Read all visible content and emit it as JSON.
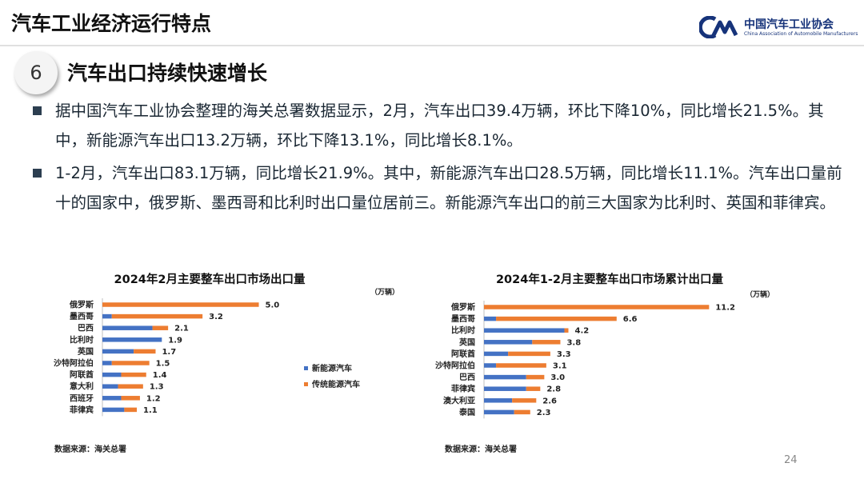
{
  "slide": {
    "header_title": "汽车工业经济运行特点",
    "logo_cn": "中国汽车工业协会",
    "logo_en": "China Association of Automobile Manufacturers",
    "section_number": "6",
    "section_title": "汽车出口持续快速增长",
    "bullets": [
      "据中国汽车工业协会整理的海关总署数据显示，2月，汽车出口39.4万辆，环比下降10%，同比增长21.5%。其中，新能源汽车出口13.2万辆，环比下降13.1%，同比增长8.1%。",
      "1-2月，汽车出口83.1万辆，同比增长21.9%。其中，新能源汽车出口28.5万辆，同比增长11.1%。汽车出口量前十的国家中，俄罗斯、墨西哥和比利时出口量位居前三。新能源汽车出口的前三大国家为比利时、英国和菲律宾。"
    ],
    "page_number": "24",
    "colors": {
      "nev": "#4472c4",
      "ice": "#ed7d31",
      "bullet": "#2c3e50"
    }
  },
  "chart_data": [
    {
      "type": "bar",
      "orientation": "horizontal",
      "stacked": true,
      "title": "2024年2月主要整车出口市场出口量",
      "unit": "（万辆）",
      "source": "数据来源：海关总署",
      "categories": [
        "俄罗斯",
        "墨西哥",
        "巴西",
        "比利时",
        "英国",
        "沙特阿拉伯",
        "阿联酋",
        "意大利",
        "西班牙",
        "菲律宾"
      ],
      "totals": [
        5.0,
        3.2,
        2.1,
        1.9,
        1.7,
        1.5,
        1.4,
        1.3,
        1.2,
        1.1
      ],
      "total_labels": [
        "5.0",
        "3.2",
        "2.1",
        "1.9",
        "1.7",
        "1.5",
        "1.4",
        "1.3",
        "1.2",
        "1.1"
      ],
      "series": [
        {
          "name": "新能源汽车",
          "color": "#4472c4",
          "values": [
            0.0,
            0.3,
            1.6,
            1.9,
            1.0,
            0.3,
            0.6,
            0.5,
            0.6,
            0.7
          ]
        },
        {
          "name": "传统能源汽车",
          "color": "#ed7d31",
          "values": [
            5.0,
            2.9,
            0.5,
            0.0,
            0.7,
            1.2,
            0.8,
            0.8,
            0.6,
            0.4
          ]
        }
      ],
      "xlim": [
        0,
        5.6
      ],
      "legend": "right"
    },
    {
      "type": "bar",
      "orientation": "horizontal",
      "stacked": true,
      "title": "2024年1-2月主要整车出口市场累计出口量",
      "unit": "（万辆）",
      "source": "数据来源：海关总署",
      "categories": [
        "俄罗斯",
        "墨西哥",
        "比利时",
        "英国",
        "阿联酋",
        "沙特阿拉伯",
        "巴西",
        "菲律宾",
        "澳大利亚",
        "泰国"
      ],
      "totals": [
        11.2,
        6.6,
        4.2,
        3.8,
        3.3,
        3.1,
        3.0,
        2.8,
        2.6,
        2.3
      ],
      "total_labels": [
        "11.2",
        "6.6",
        "4.2",
        "3.8",
        "3.3",
        "3.1",
        "3.0",
        "2.8",
        "2.6",
        "2.3"
      ],
      "series": [
        {
          "name": "新能源汽车",
          "color": "#4472c4",
          "values": [
            0.0,
            0.6,
            4.0,
            2.4,
            1.2,
            0.6,
            2.1,
            2.1,
            1.4,
            1.5
          ]
        },
        {
          "name": "传统能源汽车",
          "color": "#ed7d31",
          "values": [
            11.2,
            6.0,
            0.2,
            1.4,
            2.1,
            2.5,
            0.9,
            0.7,
            1.2,
            0.8
          ]
        }
      ],
      "xlim": [
        0,
        12.5
      ]
    }
  ]
}
